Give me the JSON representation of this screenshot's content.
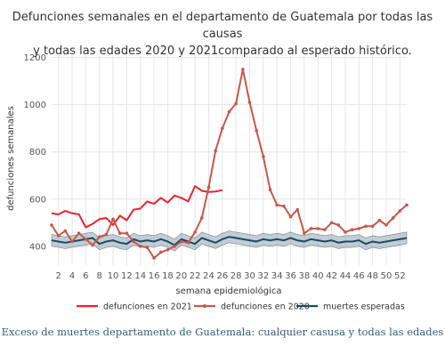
{
  "chart_data": {
    "type": "line",
    "title_line1": "Defunciones semanales en el departamento de Guatemala por todas las causas",
    "title_line2": "y todas las edades 2020 y 2021comparado al esperado histórico.",
    "xlabel": "semana epidemiológica",
    "ylabel": "defunciones semanales",
    "xlim": [
      1,
      53
    ],
    "ylim": [
      320,
      1210
    ],
    "x_ticks": [
      2,
      4,
      6,
      8,
      10,
      12,
      14,
      16,
      18,
      20,
      22,
      24,
      26,
      28,
      30,
      32,
      34,
      36,
      38,
      40,
      42,
      44,
      46,
      48,
      50,
      52
    ],
    "y_ticks": [
      400,
      600,
      800,
      1000,
      1200
    ],
    "grid": true,
    "legend_position": "bottom",
    "series": [
      {
        "name": "defunciones en 2021",
        "color": "#e8232e",
        "marker": false,
        "x": [
          1,
          2,
          3,
          4,
          5,
          6,
          7,
          8,
          9,
          10,
          11,
          12,
          13,
          14,
          15,
          16,
          17,
          18,
          19,
          20,
          21,
          22,
          23,
          24,
          25,
          26
        ],
        "values": [
          540,
          535,
          550,
          540,
          535,
          480,
          495,
          515,
          520,
          490,
          530,
          510,
          555,
          560,
          590,
          580,
          605,
          585,
          615,
          605,
          590,
          655,
          635,
          630,
          632,
          638
        ]
      },
      {
        "name": "defunciones en 2020",
        "color": "#c9574a",
        "marker": true,
        "x": [
          1,
          2,
          3,
          4,
          5,
          6,
          7,
          8,
          9,
          10,
          11,
          12,
          13,
          14,
          15,
          16,
          17,
          18,
          19,
          20,
          21,
          22,
          23,
          24,
          25,
          26,
          27,
          28,
          29,
          30,
          31,
          32,
          33,
          34,
          35,
          36,
          37,
          38,
          39,
          40,
          41,
          42,
          43,
          44,
          45,
          46,
          47,
          48,
          49,
          50,
          51,
          52,
          53
        ],
        "values": [
          490,
          445,
          465,
          420,
          455,
          430,
          405,
          440,
          450,
          515,
          455,
          455,
          420,
          400,
          395,
          350,
          375,
          385,
          400,
          420,
          415,
          460,
          520,
          650,
          805,
          900,
          970,
          1005,
          1150,
          1010,
          890,
          780,
          640,
          575,
          570,
          525,
          555,
          455,
          475,
          475,
          470,
          500,
          490,
          460,
          470,
          475,
          485,
          485,
          510,
          490,
          520,
          550,
          575
        ]
      },
      {
        "name": "muertes esperadas",
        "color": "#1d4a5e",
        "marker": false,
        "band_color": "#8fa4b3",
        "x": [
          1,
          2,
          3,
          4,
          5,
          6,
          7,
          8,
          9,
          10,
          11,
          12,
          13,
          14,
          15,
          16,
          17,
          18,
          19,
          20,
          21,
          22,
          23,
          24,
          25,
          26,
          27,
          28,
          29,
          30,
          31,
          32,
          33,
          34,
          35,
          36,
          37,
          38,
          39,
          40,
          41,
          42,
          43,
          44,
          45,
          46,
          47,
          48,
          49,
          50,
          51,
          52,
          53
        ],
        "values": [
          425,
          420,
          415,
          420,
          425,
          430,
          435,
          410,
          420,
          425,
          415,
          410,
          430,
          420,
          425,
          420,
          430,
          420,
          405,
          430,
          420,
          410,
          435,
          425,
          415,
          430,
          440,
          435,
          430,
          425,
          420,
          430,
          425,
          430,
          425,
          435,
          425,
          420,
          430,
          425,
          420,
          425,
          415,
          420,
          420,
          425,
          410,
          420,
          415,
          420,
          425,
          430,
          435
        ],
        "lower": [
          400,
          395,
          390,
          395,
          400,
          405,
          410,
          385,
          395,
          400,
          390,
          385,
          405,
          395,
          400,
          395,
          405,
          395,
          380,
          405,
          395,
          385,
          410,
          400,
          390,
          405,
          415,
          410,
          405,
          400,
          395,
          405,
          400,
          405,
          400,
          410,
          400,
          395,
          405,
          400,
          395,
          400,
          390,
          395,
          395,
          400,
          385,
          395,
          390,
          395,
          400,
          405,
          410
        ],
        "upper": [
          450,
          445,
          440,
          445,
          450,
          455,
          460,
          435,
          445,
          450,
          440,
          435,
          455,
          445,
          450,
          445,
          455,
          445,
          430,
          455,
          445,
          435,
          460,
          450,
          440,
          455,
          465,
          460,
          455,
          450,
          445,
          455,
          450,
          455,
          450,
          460,
          450,
          445,
          455,
          450,
          445,
          450,
          440,
          445,
          445,
          450,
          435,
          445,
          440,
          445,
          450,
          455,
          460
        ]
      }
    ]
  },
  "caption": "Exceso de muertes departamento de Guatemala: cualquier casusa y todas las edades",
  "colors": {
    "title": "#333333",
    "grid": "#e6e6e6",
    "caption": "#2f5e7a"
  }
}
